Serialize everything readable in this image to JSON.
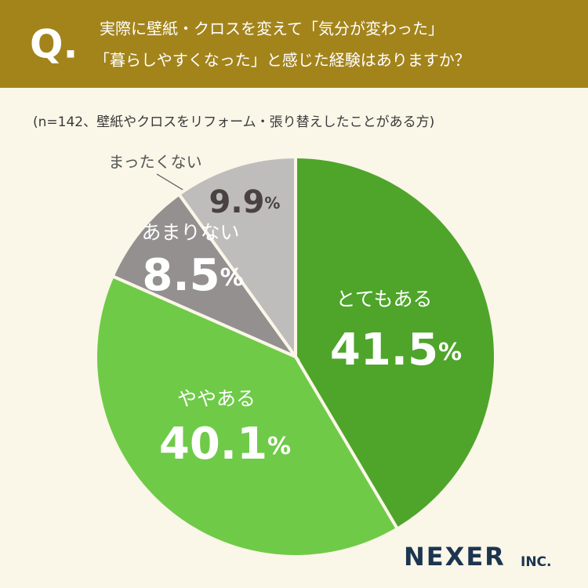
{
  "chart_data": {
    "type": "pie",
    "question_mark": "Q.",
    "title": [
      "実際に壁紙・クロスを変えて「気分が変わった」",
      "「暮らしやすくなった」と感じた経験はありますか？"
    ],
    "subtitle": "(n=142、壁紙やクロスをリフォーム・張り替えしたことがある方)",
    "categories": [
      "とてもある",
      "ややある",
      "あまりない",
      "まったくない"
    ],
    "values": [
      41.5,
      40.1,
      8.5,
      9.9
    ],
    "value_labels": [
      "41.5%",
      "40.1%",
      "8.5%",
      "9.9%"
    ],
    "colors": [
      "#4ea52a",
      "#6fca48",
      "#949090",
      "#bebdbc"
    ],
    "brand": "NEXER",
    "brand_suffix": "INC."
  }
}
